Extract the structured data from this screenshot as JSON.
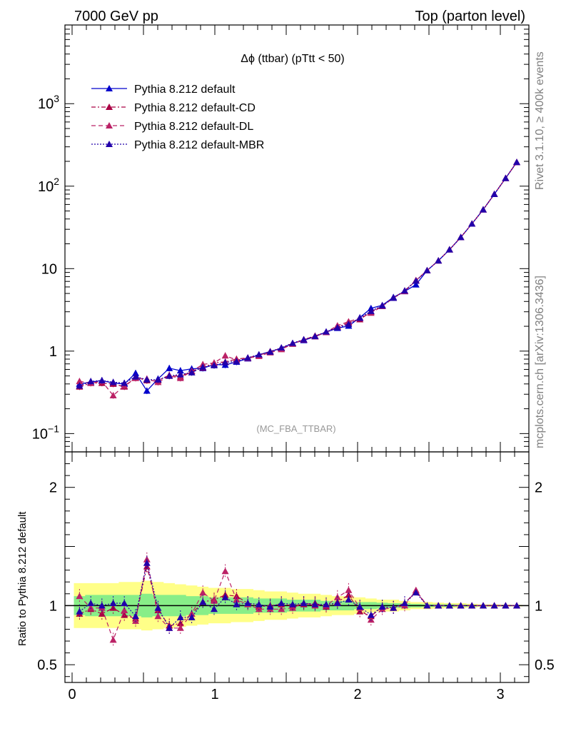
{
  "header": {
    "left": "7000 GeV pp",
    "right": "Top (parton level)"
  },
  "side_labels": {
    "rivet": "Rivet 3.1.10, ≥ 400k events",
    "source": "mcplots.cern.ch [arXiv:1306.3436]"
  },
  "chart_data": [
    {
      "type": "line",
      "panel": "main",
      "title": "Δϕ (ttbar) (pTtt < 50)",
      "annotation": "(MC_FBA_TTBAR)",
      "y_scale": "log",
      "ylim": [
        0.06,
        9000
      ],
      "xlim": [
        -0.05,
        3.2
      ],
      "y_ticks": [
        {
          "value": 0.1,
          "base": "10",
          "exp": "−1"
        },
        {
          "value": 1,
          "base": "1",
          "exp": ""
        },
        {
          "value": 10,
          "base": "10",
          "exp": ""
        },
        {
          "value": 100,
          "base": "10",
          "exp": "2"
        },
        {
          "value": 1000,
          "base": "10",
          "exp": "3"
        }
      ],
      "legend_position": "top-left",
      "x": [
        0.052,
        0.131,
        0.209,
        0.288,
        0.366,
        0.445,
        0.524,
        0.602,
        0.681,
        0.759,
        0.838,
        0.916,
        0.995,
        1.073,
        1.152,
        1.231,
        1.309,
        1.388,
        1.466,
        1.545,
        1.623,
        1.702,
        1.78,
        1.859,
        1.937,
        2.016,
        2.094,
        2.173,
        2.251,
        2.33,
        2.409,
        2.487,
        2.566,
        2.644,
        2.723,
        2.801,
        2.88,
        2.958,
        3.037,
        3.115
      ],
      "series": [
        {
          "name": "Pythia 8.212 default",
          "color": "#0000cc",
          "dash": "solid",
          "values": [
            0.4,
            0.42,
            0.44,
            0.41,
            0.4,
            0.54,
            0.33,
            0.46,
            0.62,
            0.58,
            0.61,
            0.62,
            0.69,
            0.68,
            0.74,
            0.81,
            0.9,
            0.99,
            1.08,
            1.24,
            1.35,
            1.5,
            1.7,
            1.9,
            2.02,
            2.55,
            3.3,
            3.6,
            4.5,
            5.3,
            6.4,
            9.5,
            12.5,
            17.0,
            24.0,
            35.0,
            52.0,
            80.0,
            125.0,
            195.0
          ]
        },
        {
          "name": "Pythia 8.212 default-CD",
          "color": "#aa0044",
          "dash": "6,3,2,3",
          "values": [
            0.37,
            0.41,
            0.41,
            0.4,
            0.37,
            0.48,
            0.44,
            0.44,
            0.51,
            0.49,
            0.57,
            0.63,
            0.72,
            0.74,
            0.8,
            0.83,
            0.89,
            0.99,
            1.09,
            1.24,
            1.37,
            1.53,
            1.69,
            1.96,
            2.21,
            2.42,
            3.0,
            3.55,
            4.4,
            5.4,
            7.2,
            9.5,
            12.5,
            17.0,
            24.0,
            35.0,
            52.0,
            80.0,
            125.0,
            195.0
          ]
        },
        {
          "name": "Pythia 8.212 default-DL",
          "color": "#bb2266",
          "dash": "6,4",
          "values": [
            0.43,
            0.41,
            0.43,
            0.29,
            0.38,
            0.47,
            0.46,
            0.42,
            0.5,
            0.47,
            0.57,
            0.69,
            0.72,
            0.88,
            0.78,
            0.82,
            0.87,
            0.96,
            1.05,
            1.22,
            1.38,
            1.5,
            1.7,
            2.04,
            2.28,
            2.51,
            2.9,
            3.5,
            4.4,
            5.3,
            7.2,
            9.5,
            12.5,
            17.0,
            24.0,
            35.0,
            52.0,
            80.0,
            125.0,
            195.0
          ]
        },
        {
          "name": "Pythia 8.212 default-MBR",
          "color": "#2200aa",
          "dash": "2,2",
          "values": [
            0.38,
            0.43,
            0.44,
            0.42,
            0.41,
            0.49,
            0.45,
            0.45,
            0.5,
            0.52,
            0.55,
            0.64,
            0.67,
            0.73,
            0.75,
            0.83,
            0.91,
            0.98,
            1.1,
            1.25,
            1.38,
            1.51,
            1.72,
            1.93,
            2.12,
            2.52,
            3.05,
            3.55,
            4.4,
            5.4,
            7.1,
            9.5,
            12.5,
            17.0,
            24.0,
            35.0,
            52.0,
            80.0,
            125.0,
            195.0
          ]
        }
      ]
    },
    {
      "type": "line",
      "panel": "ratio",
      "ylabel": "Ratio to Pythia 8.212 default",
      "ylim": [
        0.35,
        2.3
      ],
      "xlim": [
        -0.05,
        3.2
      ],
      "y_ticks": [
        0.5,
        1,
        2
      ],
      "x_ticks": [
        0,
        1,
        2,
        3
      ],
      "reference_line": 1,
      "band_yellow_half_width": [
        0.19,
        0.19,
        0.19,
        0.19,
        0.2,
        0.2,
        0.21,
        0.2,
        0.19,
        0.18,
        0.17,
        0.16,
        0.15,
        0.15,
        0.14,
        0.14,
        0.13,
        0.12,
        0.12,
        0.11,
        0.1,
        0.1,
        0.09,
        0.08,
        0.08,
        0.07,
        0.06,
        0.05,
        0.05,
        0.04,
        0.03,
        0.03,
        0.025,
        0.02,
        0.02,
        0.015,
        0.01,
        0.01,
        0.008,
        0.006
      ],
      "band_green_half_width": [
        0.08,
        0.09,
        0.09,
        0.09,
        0.09,
        0.09,
        0.1,
        0.09,
        0.09,
        0.09,
        0.08,
        0.08,
        0.07,
        0.07,
        0.07,
        0.07,
        0.06,
        0.06,
        0.06,
        0.05,
        0.05,
        0.05,
        0.04,
        0.04,
        0.04,
        0.03,
        0.03,
        0.025,
        0.02,
        0.02,
        0.015,
        0.012,
        0.01,
        0.01,
        0.008,
        0.006,
        0.005,
        0.004,
        0.003,
        0.003
      ],
      "series": [
        {
          "name": "Pythia 8.212 default-CD",
          "color": "#aa0044",
          "dash": "6,3,2,3",
          "values": [
            0.93,
            0.97,
            0.93,
            0.98,
            0.92,
            0.89,
            1.33,
            0.96,
            0.83,
            0.85,
            0.93,
            1.03,
            1.05,
            1.09,
            1.08,
            1.02,
            0.99,
            1.0,
            1.01,
            1.0,
            1.01,
            1.02,
            0.99,
            1.03,
            1.09,
            0.95,
            0.91,
            0.99,
            0.98,
            1.02,
            1.12,
            1.0,
            1.0,
            1.0,
            1.0,
            1.0,
            1.0,
            1.0,
            1.0,
            1.0
          ]
        },
        {
          "name": "Pythia 8.212 default-DL",
          "color": "#bb2266",
          "dash": "6,4",
          "values": [
            1.08,
            0.98,
            0.98,
            0.71,
            0.96,
            0.87,
            1.39,
            0.91,
            0.81,
            0.81,
            0.93,
            1.11,
            1.04,
            1.29,
            1.05,
            1.01,
            0.97,
            0.97,
            0.97,
            0.98,
            1.02,
            1.0,
            1.0,
            1.07,
            1.13,
            0.98,
            0.88,
            0.97,
            0.98,
            1.0,
            1.13,
            1.0,
            1.0,
            1.0,
            1.0,
            1.0,
            1.0,
            1.0,
            1.0,
            1.0
          ]
        },
        {
          "name": "Pythia 8.212 default-MBR",
          "color": "#2200aa",
          "dash": "2,2",
          "values": [
            0.95,
            1.02,
            1.0,
            1.02,
            1.02,
            0.91,
            1.36,
            0.98,
            0.81,
            0.9,
            0.9,
            1.03,
            0.97,
            1.07,
            1.01,
            1.02,
            1.01,
            0.99,
            1.02,
            1.01,
            1.02,
            1.01,
            1.01,
            1.02,
            1.05,
            0.99,
            0.92,
            0.99,
            0.98,
            1.02,
            1.11,
            1.0,
            1.0,
            1.0,
            1.0,
            1.0,
            1.0,
            1.0,
            1.0,
            1.0
          ]
        }
      ]
    }
  ]
}
